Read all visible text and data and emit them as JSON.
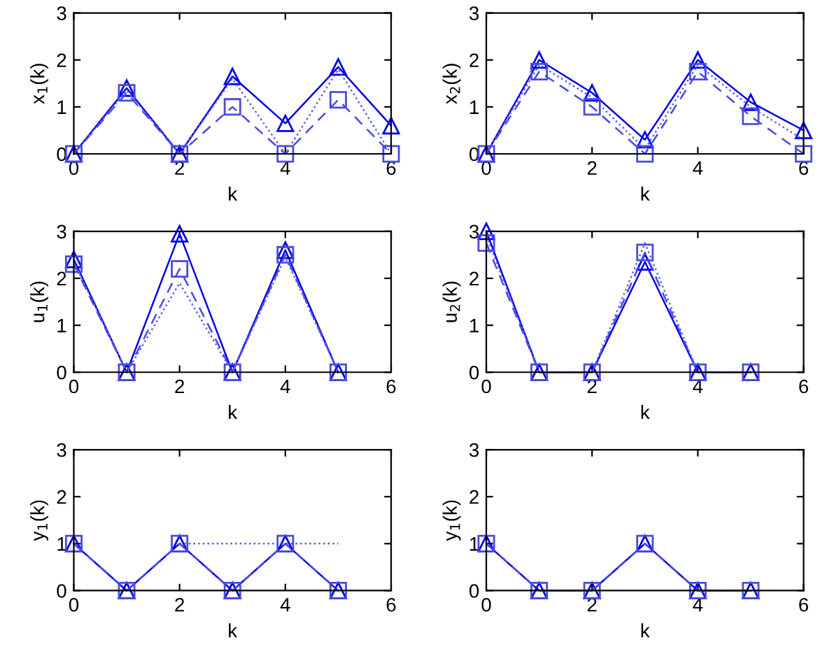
{
  "chart_data": [
    {
      "type": "line",
      "xlabel": "k",
      "ylabel": "x$_{1}$(k)",
      "xlim": [
        0,
        6
      ],
      "ylim": [
        0,
        3
      ],
      "xticks": [
        0,
        2,
        4,
        6
      ],
      "yticks": [
        0,
        1,
        2,
        3
      ],
      "grid": false,
      "legend": false,
      "x": [
        0,
        1,
        2,
        3,
        4,
        5,
        6
      ],
      "series": [
        {
          "color": "#0000e6",
          "marker": "triangle",
          "line_style": "solid",
          "values": [
            0,
            1.4,
            0,
            1.65,
            0.65,
            1.85,
            0.6
          ]
        },
        {
          "color": "#4a4ae0",
          "marker": "square",
          "line_style": "dashed",
          "values": [
            0,
            1.3,
            0,
            1.0,
            0,
            1.15,
            0
          ]
        },
        {
          "color": "#5a5af0",
          "marker": "none",
          "line_style": "dotted",
          "values": [
            0,
            1.35,
            0,
            1.6,
            0,
            1.8,
            0
          ]
        }
      ]
    },
    {
      "type": "line",
      "xlabel": "k",
      "ylabel": "x$_{2}$(k)",
      "xlim": [
        0,
        6
      ],
      "ylim": [
        0,
        3
      ],
      "xticks": [
        0,
        2,
        4,
        6
      ],
      "yticks": [
        0,
        1,
        2,
        3
      ],
      "grid": false,
      "legend": false,
      "x": [
        0,
        1,
        2,
        3,
        4,
        5,
        6
      ],
      "series": [
        {
          "color": "#0000e6",
          "marker": "triangle",
          "line_style": "solid",
          "values": [
            0,
            2.0,
            1.3,
            0.3,
            2.0,
            1.1,
            0.5
          ]
        },
        {
          "color": "#4a4ae0",
          "marker": "square",
          "line_style": "dashed",
          "values": [
            0,
            1.75,
            1.0,
            0,
            1.75,
            0.8,
            0
          ]
        },
        {
          "color": "#5a5af0",
          "marker": "none",
          "line_style": "dotted",
          "values": [
            0,
            1.9,
            1.2,
            0.1,
            1.9,
            1.0,
            0.3
          ]
        }
      ]
    },
    {
      "type": "line",
      "xlabel": "k",
      "ylabel": "u$_{1}$(k)",
      "xlim": [
        0,
        6
      ],
      "ylim": [
        0,
        3
      ],
      "xticks": [
        0,
        2,
        4,
        6
      ],
      "yticks": [
        0,
        1,
        2,
        3
      ],
      "grid": false,
      "legend": false,
      "x": [
        0,
        1,
        2,
        3,
        4,
        5
      ],
      "series": [
        {
          "color": "#0000e6",
          "marker": "triangle",
          "line_style": "solid",
          "values": [
            2.4,
            0,
            2.95,
            0,
            2.6,
            0
          ]
        },
        {
          "color": "#4a4ae0",
          "marker": "square",
          "line_style": "dashed",
          "values": [
            2.3,
            0,
            2.2,
            0,
            2.5,
            0
          ]
        },
        {
          "color": "#5a5af0",
          "marker": "none",
          "line_style": "dotted",
          "values": [
            2.35,
            0,
            1.9,
            0,
            2.45,
            0
          ]
        }
      ]
    },
    {
      "type": "line",
      "xlabel": "k",
      "ylabel": "u$_{2}$(k)",
      "xlim": [
        0,
        6
      ],
      "ylim": [
        0,
        3
      ],
      "xticks": [
        0,
        2,
        4,
        6
      ],
      "yticks": [
        0,
        1,
        2,
        3
      ],
      "grid": false,
      "legend": false,
      "x": [
        0,
        1,
        2,
        3,
        4,
        5
      ],
      "series": [
        {
          "color": "#0000e6",
          "marker": "triangle",
          "line_style": "solid",
          "values": [
            3.0,
            0,
            0,
            2.35,
            0,
            0
          ]
        },
        {
          "color": "#4a4ae0",
          "marker": "square",
          "line_style": "dashed",
          "values": [
            2.75,
            0,
            0,
            2.55,
            0,
            0
          ]
        },
        {
          "color": "#5a5af0",
          "marker": "none",
          "line_style": "dotted",
          "values": [
            2.9,
            0,
            0,
            2.75,
            0,
            0
          ]
        }
      ]
    },
    {
      "type": "line",
      "xlabel": "k",
      "ylabel": "y$_{1}$(k)",
      "xlim": [
        0,
        6
      ],
      "ylim": [
        0,
        3
      ],
      "xticks": [
        0,
        2,
        4,
        6
      ],
      "yticks": [
        0,
        1,
        2,
        3
      ],
      "grid": false,
      "legend": false,
      "x": [
        0,
        1,
        2,
        3,
        4,
        5
      ],
      "series": [
        {
          "color": "#0000e6",
          "marker": "triangle",
          "line_style": "solid",
          "values": [
            1,
            0,
            1,
            0,
            1,
            0
          ]
        },
        {
          "color": "#4a4ae0",
          "marker": "square",
          "line_style": "dashed",
          "values": [
            1,
            0,
            1,
            0,
            1,
            0
          ]
        },
        {
          "color": "#5a5af0",
          "marker": "none",
          "line_style": "dotted",
          "x": [
            2,
            5
          ],
          "values": [
            1,
            1
          ]
        }
      ]
    },
    {
      "type": "line",
      "xlabel": "k",
      "ylabel": "y$_{1}$(k)",
      "xlim": [
        0,
        6
      ],
      "ylim": [
        0,
        3
      ],
      "xticks": [
        0,
        2,
        4,
        6
      ],
      "yticks": [
        0,
        1,
        2,
        3
      ],
      "grid": false,
      "legend": false,
      "x": [
        0,
        1,
        2,
        3,
        4,
        5
      ],
      "series": [
        {
          "color": "#0000e6",
          "marker": "triangle",
          "line_style": "solid",
          "values": [
            1,
            0,
            0,
            1,
            0,
            0
          ]
        },
        {
          "color": "#4a4ae0",
          "marker": "square",
          "line_style": "dashed",
          "values": [
            1,
            0,
            0,
            1,
            0,
            0
          ]
        }
      ]
    }
  ]
}
